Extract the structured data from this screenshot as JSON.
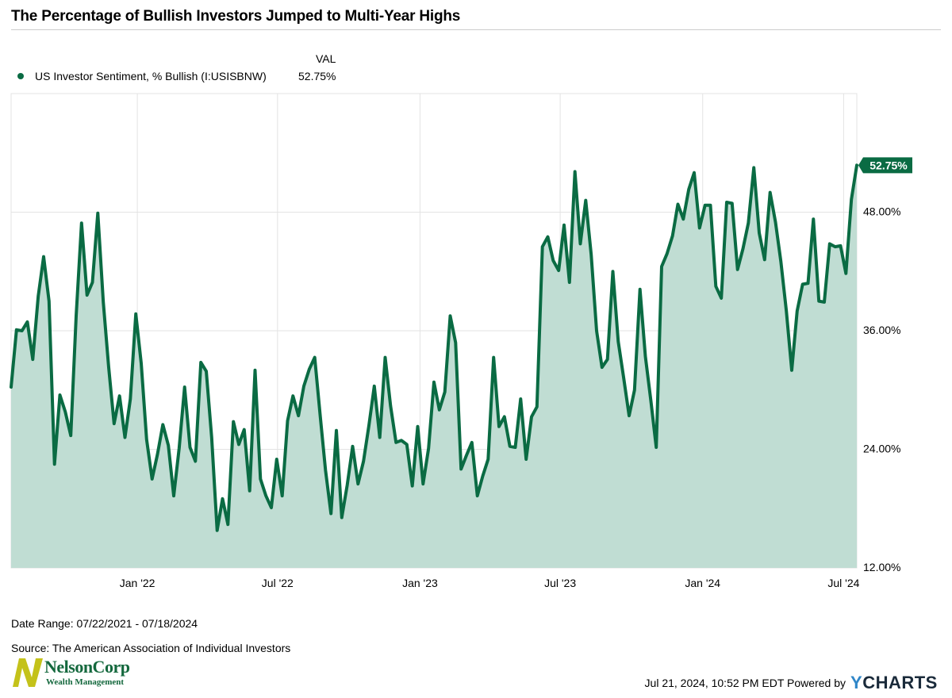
{
  "page": {
    "date_range": "Date Range: 07/22/2021 - 07/18/2024",
    "source": "Source: The American Association of Individual Investors",
    "timestamp": "Jul 21, 2024, 10:52 PM EDT Powered by",
    "brand_y": "Y",
    "brand_rest": "CHARTS",
    "logo_name": "NelsonCorp",
    "logo_tagline": "Wealth Management"
  },
  "legend": {
    "header": "VAL",
    "label": "US Investor Sentiment, % Bullish (I:USISBNW)",
    "value": "52.75%"
  },
  "colors": {
    "line": "#0a6b43",
    "fill": "#c0ddd3",
    "grid": "#e3e3e3",
    "logo_mark": "#c4c21a"
  },
  "chart_data": {
    "type": "area",
    "title": "The Percentage of Bullish Investors Jumped to Multi-Year Highs",
    "series": [
      {
        "name": "US Investor Sentiment, % Bullish (I:USISBNW)",
        "start_date": "2021-07-22",
        "interval_days": 7,
        "last_value_label": "52.75%",
        "values": [
          30.3,
          36.1,
          36.0,
          36.9,
          33.1,
          39.5,
          43.5,
          39.0,
          22.5,
          29.5,
          27.8,
          25.4,
          37.5,
          46.9,
          39.6,
          40.9,
          47.9,
          38.9,
          32.3,
          26.6,
          29.4,
          25.2,
          29.1,
          37.7,
          32.7,
          25.0,
          21.0,
          23.5,
          26.5,
          24.4,
          19.3,
          24.1,
          30.3,
          24.2,
          22.8,
          32.8,
          31.9,
          25.2,
          15.8,
          19.0,
          16.4,
          26.8,
          24.5,
          26.0,
          19.8,
          32.0,
          21.0,
          19.3,
          18.1,
          23.0,
          19.3,
          26.9,
          29.4,
          27.4,
          30.4,
          32.1,
          33.3,
          27.5,
          21.9,
          17.5,
          25.9,
          17.1,
          20.4,
          24.3,
          20.5,
          22.8,
          26.4,
          30.4,
          25.2,
          33.3,
          28.4,
          24.7,
          24.9,
          24.5,
          20.3,
          26.3,
          20.5,
          24.1,
          30.8,
          28.0,
          29.8,
          37.5,
          34.8,
          22.0,
          23.4,
          24.7,
          19.3,
          21.3,
          23.0,
          33.3,
          26.3,
          27.3,
          24.3,
          24.2,
          29.1,
          23.0,
          27.3,
          28.3,
          44.5,
          45.5,
          43.1,
          42.1,
          46.7,
          40.9,
          52.1,
          44.8,
          49.2,
          43.7,
          36.0,
          32.3,
          33.1,
          42.0,
          34.9,
          31.2,
          27.4,
          30.0,
          40.2,
          33.4,
          29.0,
          24.2,
          42.5,
          43.8,
          45.6,
          48.8,
          47.3,
          50.3,
          52.0,
          46.4,
          48.7,
          48.7,
          40.5,
          39.3,
          49.0,
          48.9,
          42.2,
          44.3,
          46.9,
          52.5,
          45.9,
          43.2,
          50.0,
          47.0,
          43.0,
          38.0,
          32.0,
          38.0,
          40.7,
          40.8,
          47.3,
          39.0,
          38.9,
          44.8,
          44.5,
          44.6,
          41.8,
          49.3,
          52.75
        ]
      }
    ],
    "x_ticks": [
      {
        "date": "2022-01-01",
        "label": "Jan '22"
      },
      {
        "date": "2022-07-01",
        "label": "Jul '22"
      },
      {
        "date": "2023-01-01",
        "label": "Jan '23"
      },
      {
        "date": "2023-07-01",
        "label": "Jul '23"
      },
      {
        "date": "2024-01-01",
        "label": "Jan '24"
      },
      {
        "date": "2024-07-01",
        "label": "Jul '24"
      }
    ],
    "y_ticks": [
      {
        "value": 12,
        "label": "12.00%"
      },
      {
        "value": 24,
        "label": "24.00%"
      },
      {
        "value": 36,
        "label": "36.00%"
      },
      {
        "value": 48,
        "label": "48.00%"
      }
    ],
    "xlim": [
      "2021-07-22",
      "2024-07-18"
    ],
    "ylim": [
      12,
      60
    ],
    "grid": true,
    "legend_position": "top-left"
  }
}
